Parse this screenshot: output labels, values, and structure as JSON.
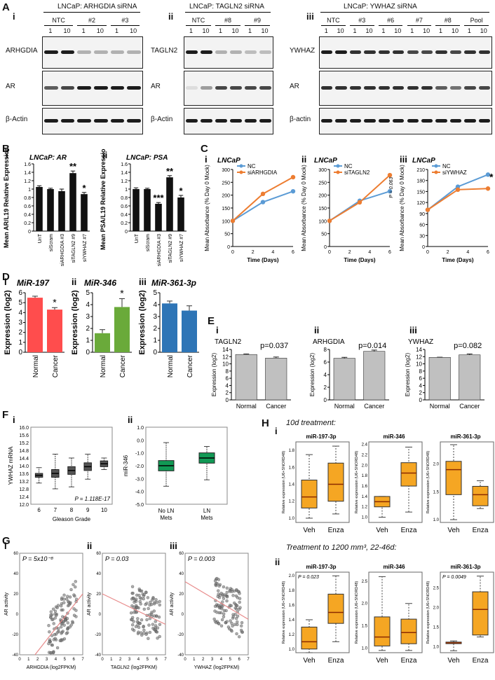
{
  "panel_labels": {
    "A": "A",
    "B": "B",
    "C": "C",
    "D": "D",
    "E": "E",
    "F": "F",
    "G": "G",
    "H": "H"
  },
  "blots": [
    {
      "id": "Ai",
      "roman": "i",
      "title": "LNCaP: ARHGDIA siRNA",
      "groups": [
        "NTC",
        "#2",
        "#3"
      ],
      "lanes": [
        "1",
        "10",
        "1",
        "10",
        "1",
        "10"
      ],
      "proteins": [
        "ARHGDIA",
        "AR",
        "β-Actin"
      ]
    },
    {
      "id": "Aii",
      "roman": "ii",
      "title": "LNCaP: TAGLN2 siRNA",
      "groups": [
        "NTC",
        "#8",
        "#9"
      ],
      "lanes": [
        "1",
        "10",
        "1",
        "10",
        "1",
        "10"
      ],
      "proteins": [
        "TAGLN2",
        "AR",
        "β-Actin"
      ]
    },
    {
      "id": "Aiii",
      "roman": "iii",
      "title": "LNCaP: YWHAZ siRNA",
      "groups": [
        "NTC",
        "#3",
        "#6",
        "#7",
        "#8",
        "Pool"
      ],
      "lanes": [
        "1",
        "10",
        "1",
        "10",
        "1",
        "10",
        "1",
        "10",
        "1",
        "10",
        "1",
        "10"
      ],
      "proteins": [
        "YWHAZ",
        "AR",
        "β-actin"
      ]
    }
  ],
  "chart_data": [
    {
      "id": "Bi",
      "type": "bar",
      "roman": "i",
      "title": "LNCaP: AR",
      "ylabel": "Mean AR/L19 Relative Expression",
      "categories": [
        "UnT",
        "siScram",
        "siARHGDIA #3",
        "siTAGLN2 #9",
        "siYWHAZ #7"
      ],
      "values": [
        1.05,
        1.0,
        0.95,
        1.38,
        0.88
      ],
      "errors": [
        0.03,
        0.02,
        0.05,
        0.05,
        0.04
      ],
      "marks": [
        "",
        "",
        "",
        "**",
        "*"
      ],
      "ylim": [
        0,
        1.6
      ],
      "yticks": [
        "0",
        "0.2",
        "0.4",
        "0.6",
        "0.8",
        "1",
        "1.2",
        "1.4",
        "1.6"
      ]
    },
    {
      "id": "Bii",
      "type": "bar",
      "roman": "ii",
      "title": "LNCaP: PSA",
      "ylabel": "Mean PSA/L19 Relative Expression",
      "categories": [
        "UnT",
        "siScram",
        "siARHGDIA #3",
        "siTAGLN2 #9",
        "siYWHAZ #7"
      ],
      "values": [
        1.0,
        1.0,
        0.65,
        1.28,
        0.8
      ],
      "errors": [
        0.03,
        0.02,
        0.03,
        0.04,
        0.05
      ],
      "marks": [
        "",
        "",
        "***",
        "**",
        "*"
      ],
      "ylim": [
        0,
        1.6
      ],
      "yticks": [
        "0",
        "0.2",
        "0.4",
        "0.6",
        "0.8",
        "1",
        "1.2",
        "1.4",
        "1.6"
      ]
    },
    {
      "id": "Ci",
      "type": "line",
      "roman": "i",
      "title": "LNCaP",
      "xlabel": "Time (Days)",
      "ylabel": "Mean Absorbance (% Day 0 Mock)",
      "x": [
        0,
        3,
        6
      ],
      "xticks": [
        "0",
        "2",
        "4",
        "6"
      ],
      "ylim": [
        0,
        300
      ],
      "yticks": [
        "0",
        "50",
        "100",
        "150",
        "200",
        "250",
        "300"
      ],
      "series": [
        {
          "name": "NC",
          "values": [
            100,
            173,
            215
          ],
          "color": "#5b9bd5"
        },
        {
          "name": "siARHGDIA",
          "values": [
            100,
            205,
            270
          ],
          "color": "#ed7d31"
        }
      ],
      "annotation": ""
    },
    {
      "id": "Cii",
      "type": "line",
      "roman": "ii",
      "title": "LNCaP",
      "xlabel": "Time (Days)",
      "ylabel": "Mean Absorbance (% Day 0 Mock)",
      "x": [
        0,
        3,
        6
      ],
      "xticks": [
        "0",
        "2",
        "4",
        "6"
      ],
      "ylim": [
        0,
        300
      ],
      "yticks": [
        "0",
        "50",
        "100",
        "150",
        "200",
        "250",
        "300"
      ],
      "series": [
        {
          "name": "NC",
          "values": [
            100,
            178,
            215
          ],
          "color": "#5b9bd5"
        },
        {
          "name": "siTAGLN2",
          "values": [
            100,
            172,
            278
          ],
          "color": "#ed7d31"
        }
      ],
      "annotation": "P = 0.063"
    },
    {
      "id": "Ciii",
      "type": "line",
      "roman": "iii",
      "title": "LNCaP",
      "xlabel": "Time (Days)",
      "ylabel": "Mean Absorbance (% Day 0 Mock)",
      "x": [
        0,
        3,
        6
      ],
      "xticks": [
        "0",
        "2",
        "4",
        "6"
      ],
      "ylim": [
        0,
        210
      ],
      "yticks": [
        "0",
        "30",
        "60",
        "90",
        "120",
        "150",
        "180",
        "210"
      ],
      "series": [
        {
          "name": "NC",
          "values": [
            100,
            163,
            196
          ],
          "color": "#5b9bd5"
        },
        {
          "name": "siYWHAZ",
          "values": [
            100,
            155,
            158
          ],
          "color": "#ed7d31"
        }
      ],
      "annotation": "*"
    },
    {
      "id": "Di",
      "type": "bar",
      "roman": "i",
      "title": "MiR-197",
      "ylabel": "Expression (log2)",
      "categories": [
        "Normal",
        "Cancer"
      ],
      "values": [
        5.5,
        4.3
      ],
      "errors": [
        0.15,
        0.2
      ],
      "marks": [
        "",
        "*"
      ],
      "color": "#ff4d4d",
      "ylim": [
        0,
        6
      ],
      "yticks": [
        "0",
        "1",
        "2",
        "3",
        "4",
        "5",
        "6"
      ]
    },
    {
      "id": "Dii",
      "type": "bar",
      "roman": "ii",
      "title": "MiR-346",
      "ylabel": "Expression (log2)",
      "categories": [
        "Normal",
        "Cancer"
      ],
      "values": [
        1.6,
        3.8
      ],
      "errors": [
        0.3,
        0.7
      ],
      "marks": [
        "",
        "*"
      ],
      "color": "#6aaa3a",
      "ylim": [
        0,
        5
      ],
      "yticks": [
        "0",
        "1",
        "2",
        "3",
        "4",
        "5"
      ]
    },
    {
      "id": "Diii",
      "type": "bar",
      "roman": "iii",
      "title": "MiR-361-3p",
      "ylabel": "Expression (log2)",
      "categories": [
        "Normal",
        "Cancer"
      ],
      "values": [
        4.1,
        3.5
      ],
      "errors": [
        0.2,
        0.4
      ],
      "marks": [
        "",
        ""
      ],
      "color": "#2e75b6",
      "ylim": [
        0,
        5
      ],
      "yticks": [
        "0",
        "1",
        "2",
        "3",
        "4",
        "5"
      ]
    },
    {
      "id": "Ei",
      "type": "bar",
      "roman": "i",
      "title": "TAGLN2",
      "ylabel": "Expression (log2)",
      "categories": [
        "Normal",
        "Cancer"
      ],
      "values": [
        12.6,
        11.6
      ],
      "errors": [
        0.15,
        0.3
      ],
      "pval": "p=0.037",
      "color": "#c0c0c0",
      "ylim": [
        0,
        14
      ],
      "yticks": [
        "0",
        "2",
        "4",
        "6",
        "8",
        "10",
        "12",
        "14"
      ]
    },
    {
      "id": "Eii",
      "type": "bar",
      "roman": "ii",
      "title": "ARHGDIA",
      "ylabel": "Expression (log2)",
      "categories": [
        "Normal",
        "Cancer"
      ],
      "values": [
        6.6,
        7.7
      ],
      "errors": [
        0.15,
        0.2
      ],
      "pval": "p=0.014",
      "color": "#c0c0c0",
      "ylim": [
        0,
        8
      ],
      "yticks": [
        "0",
        "2",
        "4",
        "6",
        "8"
      ]
    },
    {
      "id": "Eiii",
      "type": "bar",
      "roman": "iii",
      "title": "YWHAZ",
      "ylabel": "Expression (log2)",
      "categories": [
        "Normal",
        "Cancer"
      ],
      "values": [
        11.8,
        12.5
      ],
      "errors": [
        0.05,
        0.25
      ],
      "pval": "p=0.082",
      "color": "#c0c0c0",
      "ylim": [
        0,
        14
      ],
      "yticks": [
        "0",
        "2",
        "4",
        "6",
        "8",
        "10",
        "12",
        "14"
      ]
    },
    {
      "id": "Fi",
      "type": "box",
      "roman": "i",
      "ylabel": "YWHAZ mRNA",
      "xlabel": "Gleason Grade",
      "categories": [
        "6",
        "7",
        "8",
        "9",
        "10"
      ],
      "median": [
        13.5,
        13.6,
        13.75,
        13.95,
        14.1
      ],
      "q1": [
        13.4,
        13.4,
        13.55,
        13.75,
        13.95
      ],
      "q3": [
        13.6,
        13.8,
        13.95,
        14.15,
        14.25
      ],
      "lo": [
        13.1,
        12.8,
        12.9,
        13.3,
        13.8
      ],
      "hi": [
        13.9,
        14.6,
        14.4,
        14.6,
        14.4
      ],
      "ylim": [
        12,
        16
      ],
      "yticks": [
        "12.0",
        "12.4",
        "12.8",
        "13.2",
        "13.6",
        "14.0",
        "14.4",
        "14.8",
        "15.2",
        "15.6",
        "16.0"
      ],
      "annotation": "P = 1.118E-17",
      "color": "#555555"
    },
    {
      "id": "Fii",
      "type": "box",
      "roman": "ii",
      "ylabel": "miR-346",
      "xlabel": "",
      "categories": [
        "No LN Mets",
        "LN Mets"
      ],
      "median": [
        -2.0,
        -1.4
      ],
      "q1": [
        -2.4,
        -1.8
      ],
      "q3": [
        -1.6,
        -1.0
      ],
      "lo": [
        -3.6,
        -3.1
      ],
      "hi": [
        -0.2,
        -0.5
      ],
      "ylim": [
        -5,
        1
      ],
      "yticks": [
        "-5.0",
        "-4.0",
        "-3.0",
        "-2.0",
        "-1.0",
        "0.0",
        "1.0"
      ],
      "color": "#119955"
    },
    {
      "id": "Gi",
      "type": "scatter",
      "roman": "i",
      "xlabel": "ARHGDIA (log2FPKM)",
      "ylabel": "AR activity",
      "annotation": "P = 5x10⁻⁸",
      "xticks": [
        "0",
        "1",
        "2",
        "3",
        "4",
        "5",
        "6",
        "7"
      ],
      "yticks": [
        "-40",
        "-20",
        "0",
        "20",
        "40",
        "60"
      ],
      "xlim": [
        0,
        7
      ],
      "ylim": [
        -40,
        60
      ],
      "trend": [
        [
          1.7,
          -40
        ],
        [
          7,
          20
        ]
      ]
    },
    {
      "id": "Gii",
      "type": "scatter",
      "roman": "ii",
      "xlabel": "TAGLN2 (log2FPKM)",
      "ylabel": "AR activity",
      "annotation": "P = 0.03",
      "xticks": [
        "0",
        "1",
        "2",
        "3",
        "4",
        "5",
        "6",
        "7"
      ],
      "yticks": [
        "-40",
        "-20",
        "0",
        "20",
        "40",
        "60"
      ],
      "xlim": [
        0,
        7
      ],
      "ylim": [
        -40,
        60
      ],
      "trend": [
        [
          0,
          20
        ],
        [
          7,
          -10
        ]
      ]
    },
    {
      "id": "Giii",
      "type": "scatter",
      "roman": "iii",
      "xlabel": "YWHAZ (log2FPKM)",
      "ylabel": "AR activity",
      "annotation": "P = 0.003",
      "xticks": [
        "0",
        "1",
        "2",
        "3",
        "4",
        "5",
        "6",
        "7"
      ],
      "yticks": [
        "-40",
        "-20",
        "0",
        "20",
        "40",
        "60"
      ],
      "xlim": [
        0,
        7
      ],
      "ylim": [
        -40,
        60
      ],
      "trend": [
        [
          0,
          32
        ],
        [
          7,
          -5
        ]
      ]
    },
    {
      "id": "Hi1",
      "type": "box",
      "title": "miR-197-3p",
      "ylabel": "Relative expression (U6+SNORD48)",
      "categories": [
        "Veh",
        "Enza"
      ],
      "median": [
        1.25,
        1.4
      ],
      "q1": [
        1.12,
        1.2
      ],
      "q3": [
        1.45,
        1.65
      ],
      "lo": [
        1.0,
        1.05
      ],
      "hi": [
        1.75,
        1.85
      ],
      "ylim": [
        0.95,
        1.9
      ],
      "yticks": [
        "1.0",
        "1.2",
        "1.4",
        "1.6",
        "1.8"
      ],
      "color": "#f5a623"
    },
    {
      "id": "Hi2",
      "type": "box",
      "title": "miR-346",
      "ylabel": "Relative expression (U6+SNORD48)",
      "categories": [
        "Veh",
        "Enza"
      ],
      "median": [
        1.3,
        1.85
      ],
      "q1": [
        1.2,
        1.6
      ],
      "q3": [
        1.4,
        2.05
      ],
      "lo": [
        1.0,
        1.1
      ],
      "hi": [
        1.4,
        2.35
      ],
      "ylim": [
        0.9,
        2.45
      ],
      "yticks": [
        "1.0",
        "1.2",
        "1.4",
        "1.6",
        "1.8",
        "2.0",
        "2.2",
        "2.4"
      ],
      "color": "#f5a623"
    },
    {
      "id": "Hi3",
      "type": "box",
      "title": "miR-361-3p",
      "ylabel": "Relative expression (U6+SNORD48)",
      "categories": [
        "Veh",
        "Enza"
      ],
      "median": [
        1.9,
        1.45
      ],
      "q1": [
        1.45,
        1.25
      ],
      "q3": [
        2.05,
        1.6
      ],
      "lo": [
        1.0,
        1.2
      ],
      "hi": [
        2.35,
        1.7
      ],
      "ylim": [
        0.95,
        2.4
      ],
      "yticks": [
        "1.0",
        "1.5",
        "2.0"
      ],
      "color": "#f5a623"
    },
    {
      "id": "Hii1",
      "type": "box",
      "title": "miR-197-3p",
      "ylabel": "Relative expression (U6+SNORD48)",
      "categories": [
        "Veh",
        "Enza"
      ],
      "median": [
        1.1,
        1.5
      ],
      "q1": [
        1.0,
        1.35
      ],
      "q3": [
        1.3,
        1.75
      ],
      "lo": [
        0.95,
        1.1
      ],
      "hi": [
        1.4,
        2.0
      ],
      "ylim": [
        0.95,
        2.05
      ],
      "yticks": [
        "1.0",
        "1.2",
        "1.4",
        "1.6",
        "1.8",
        "2.0"
      ],
      "annotation": "P = 0.023",
      "color": "#f5a623"
    },
    {
      "id": "Hii2",
      "type": "box",
      "title": "miR-346",
      "ylabel": "Relative expression (U6+SNORD48)",
      "categories": [
        "Veh",
        "Enza"
      ],
      "median": [
        1.25,
        1.35
      ],
      "q1": [
        1.05,
        1.1
      ],
      "q3": [
        1.7,
        1.65
      ],
      "lo": [
        0.95,
        0.95
      ],
      "hi": [
        2.6,
        2.0
      ],
      "ylim": [
        0.9,
        2.7
      ],
      "yticks": [
        "1.0",
        "1.5",
        "2.0",
        "2.5"
      ],
      "color": "#f5a623"
    },
    {
      "id": "Hii3",
      "type": "box",
      "title": "miR-361-3p",
      "ylabel": "Relative expression (U6+SNORD48)",
      "categories": [
        "Veh",
        "Enza"
      ],
      "median": [
        1.1,
        1.95
      ],
      "q1": [
        1.08,
        1.3
      ],
      "q3": [
        1.12,
        2.4
      ],
      "lo": [
        0.9,
        1.25
      ],
      "hi": [
        1.15,
        2.8
      ],
      "ylim": [
        0.85,
        2.9
      ],
      "yticks": [
        "1.0",
        "1.5",
        "2.0",
        "2.5"
      ],
      "annotation": "P = 0.0049",
      "color": "#f5a623"
    }
  ],
  "H_headers": {
    "i": "10d treatment:",
    "ii": "Treatment to 1200 mm³, 22-46d:"
  },
  "romans": {
    "i": "i",
    "ii": "ii",
    "iii": "iii"
  }
}
